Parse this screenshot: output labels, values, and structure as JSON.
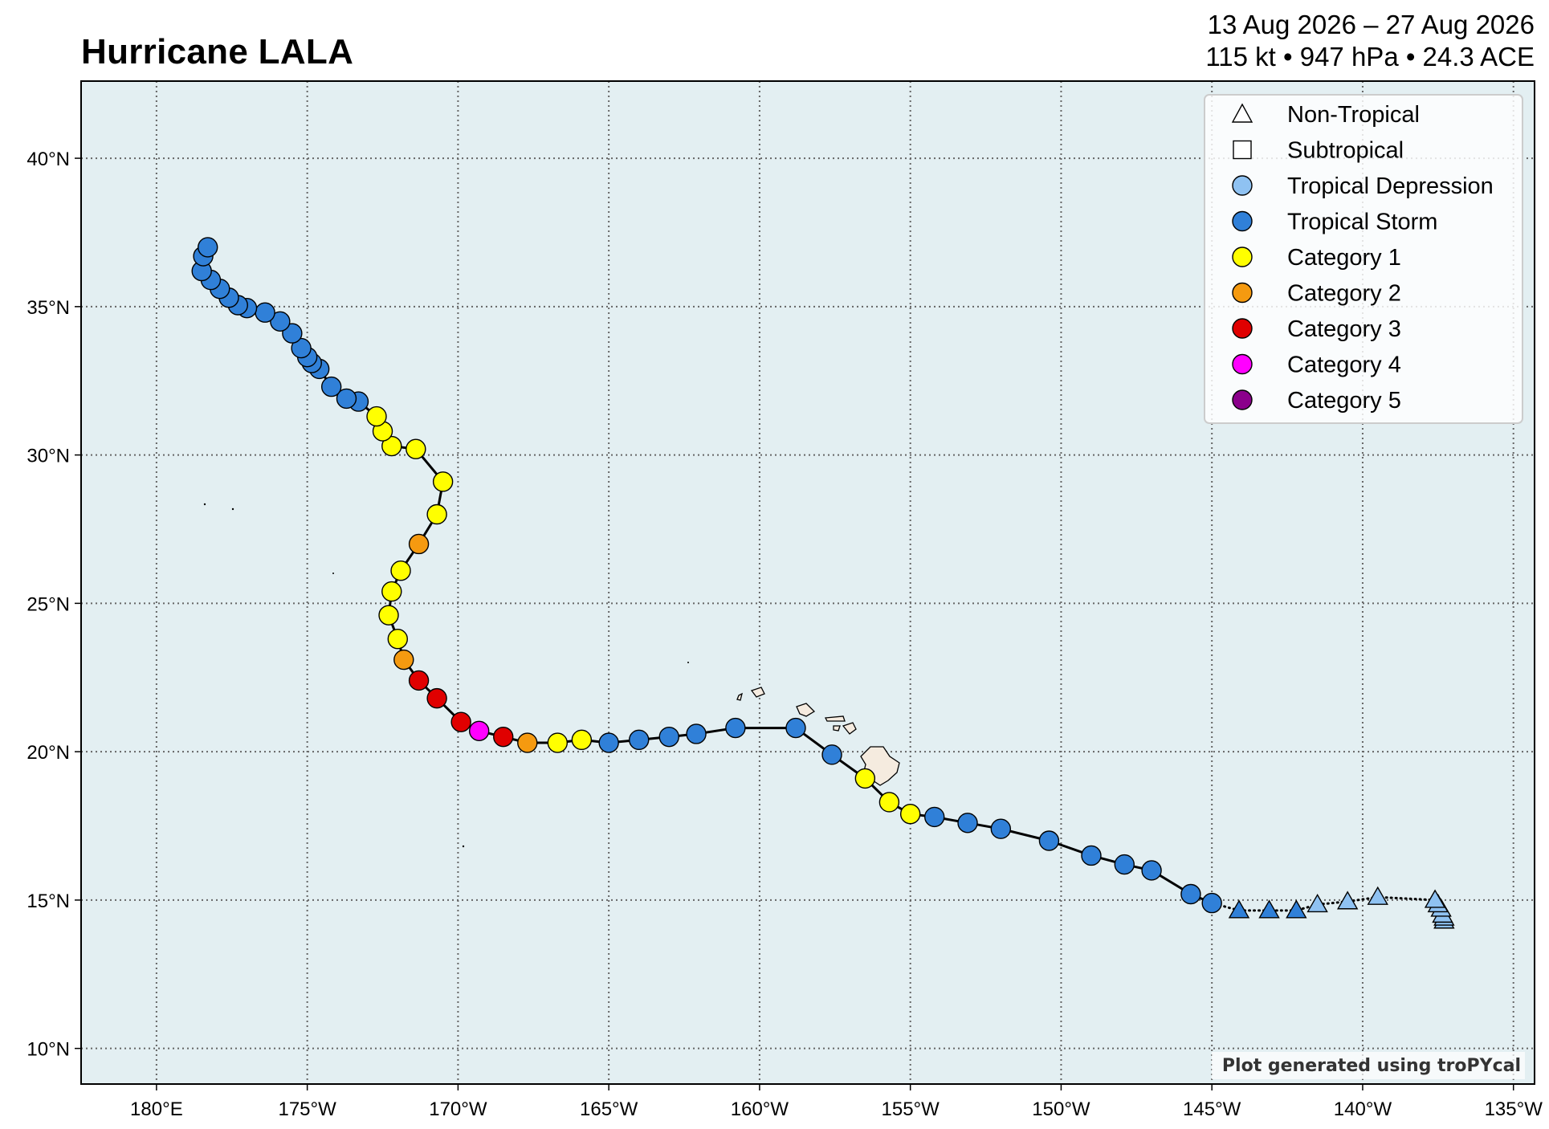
{
  "title": "Hurricane LALA",
  "date_range": "13 Aug 2026 – 27 Aug 2026",
  "stats": "115 kt • 947 hPa • 24.3 ACE",
  "credit": "Plot generated using troPYcal",
  "colors": {
    "ocean": "#e3eff2",
    "land": "#f5ebdf",
    "track": "#000000",
    "grid": "#666666",
    "Tropical Depression": "#8fc2f2",
    "Tropical Storm": "#3080d8",
    "Category 1": "#ffff00",
    "Category 2": "#f59a10",
    "Category 3": "#e00000",
    "Category 4": "#ff00ff",
    "Category 5": "#8b008b"
  },
  "legend": [
    {
      "label": "Non-Tropical",
      "marker": "triangle",
      "fill": "#ffffff"
    },
    {
      "label": "Subtropical",
      "marker": "square",
      "fill": "#ffffff"
    },
    {
      "label": "Tropical Depression",
      "marker": "circle",
      "fill": "#8fc2f2"
    },
    {
      "label": "Tropical Storm",
      "marker": "circle",
      "fill": "#3080d8"
    },
    {
      "label": "Category 1",
      "marker": "circle",
      "fill": "#ffff00"
    },
    {
      "label": "Category 2",
      "marker": "circle",
      "fill": "#f59a10"
    },
    {
      "label": "Category 3",
      "marker": "circle",
      "fill": "#e00000"
    },
    {
      "label": "Category 4",
      "marker": "circle",
      "fill": "#ff00ff"
    },
    {
      "label": "Category 5",
      "marker": "circle",
      "fill": "#8b008b"
    }
  ],
  "chart_data": {
    "type": "scatter",
    "map_extent": {
      "lon": [
        -182.5,
        -134.3
      ],
      "lat": [
        8.8,
        42.6
      ]
    },
    "x_ticks": [
      {
        "lon": -180,
        "label": "180°E"
      },
      {
        "lon": -175,
        "label": "175°W"
      },
      {
        "lon": -170,
        "label": "170°W"
      },
      {
        "lon": -165,
        "label": "165°W"
      },
      {
        "lon": -160,
        "label": "160°W"
      },
      {
        "lon": -155,
        "label": "155°W"
      },
      {
        "lon": -150,
        "label": "150°W"
      },
      {
        "lon": -145,
        "label": "145°W"
      },
      {
        "lon": -140,
        "label": "140°W"
      },
      {
        "lon": -135,
        "label": "135°W"
      }
    ],
    "y_ticks": [
      {
        "lat": 10,
        "label": "10°N"
      },
      {
        "lat": 15,
        "label": "15°N"
      },
      {
        "lat": 20,
        "label": "20°N"
      },
      {
        "lat": 25,
        "label": "25°N"
      },
      {
        "lat": 30,
        "label": "30°N"
      },
      {
        "lat": 35,
        "label": "35°N"
      },
      {
        "lat": 40,
        "label": "40°N"
      }
    ],
    "grid": true,
    "legend_position": "top-right",
    "track": [
      {
        "lon": -137.3,
        "lat": 14.3,
        "type": "NT",
        "cat": "TD"
      },
      {
        "lon": -137.3,
        "lat": 14.4,
        "type": "NT",
        "cat": "TD"
      },
      {
        "lon": -137.35,
        "lat": 14.5,
        "type": "NT",
        "cat": "TD"
      },
      {
        "lon": -137.4,
        "lat": 14.7,
        "type": "NT",
        "cat": "TD"
      },
      {
        "lon": -137.5,
        "lat": 14.85,
        "type": "NT",
        "cat": "TD"
      },
      {
        "lon": -137.6,
        "lat": 15.0,
        "type": "NT",
        "cat": "TD"
      },
      {
        "lon": -139.5,
        "lat": 15.1,
        "type": "NT",
        "cat": "TD"
      },
      {
        "lon": -140.5,
        "lat": 14.95,
        "type": "NT",
        "cat": "TD"
      },
      {
        "lon": -141.5,
        "lat": 14.85,
        "type": "NT",
        "cat": "TD"
      },
      {
        "lon": -142.2,
        "lat": 14.65,
        "type": "NT",
        "cat": "TS"
      },
      {
        "lon": -143.1,
        "lat": 14.65,
        "type": "NT",
        "cat": "TS"
      },
      {
        "lon": -144.1,
        "lat": 14.65,
        "type": "NT",
        "cat": "TS"
      },
      {
        "lon": -145.0,
        "lat": 14.9,
        "type": "T",
        "cat": "TS"
      },
      {
        "lon": -145.7,
        "lat": 15.2,
        "type": "T",
        "cat": "TS"
      },
      {
        "lon": -147.0,
        "lat": 16.0,
        "type": "T",
        "cat": "TS"
      },
      {
        "lon": -147.9,
        "lat": 16.2,
        "type": "T",
        "cat": "TS"
      },
      {
        "lon": -149.0,
        "lat": 16.5,
        "type": "T",
        "cat": "TS"
      },
      {
        "lon": -150.4,
        "lat": 17.0,
        "type": "T",
        "cat": "TS"
      },
      {
        "lon": -152.0,
        "lat": 17.4,
        "type": "T",
        "cat": "TS"
      },
      {
        "lon": -153.1,
        "lat": 17.6,
        "type": "T",
        "cat": "TS"
      },
      {
        "lon": -154.2,
        "lat": 17.8,
        "type": "T",
        "cat": "TS"
      },
      {
        "lon": -155.0,
        "lat": 17.9,
        "type": "T",
        "cat": "C1"
      },
      {
        "lon": -155.7,
        "lat": 18.3,
        "type": "T",
        "cat": "C1"
      },
      {
        "lon": -156.5,
        "lat": 19.1,
        "type": "T",
        "cat": "C1"
      },
      {
        "lon": -157.6,
        "lat": 19.9,
        "type": "T",
        "cat": "TS"
      },
      {
        "lon": -158.8,
        "lat": 20.8,
        "type": "T",
        "cat": "TS"
      },
      {
        "lon": -160.8,
        "lat": 20.8,
        "type": "T",
        "cat": "TS"
      },
      {
        "lon": -162.1,
        "lat": 20.6,
        "type": "T",
        "cat": "TS"
      },
      {
        "lon": -163.0,
        "lat": 20.5,
        "type": "T",
        "cat": "TS"
      },
      {
        "lon": -164.0,
        "lat": 20.4,
        "type": "T",
        "cat": "TS"
      },
      {
        "lon": -165.0,
        "lat": 20.3,
        "type": "T",
        "cat": "TS"
      },
      {
        "lon": -165.9,
        "lat": 20.4,
        "type": "T",
        "cat": "C1"
      },
      {
        "lon": -166.7,
        "lat": 20.3,
        "type": "T",
        "cat": "C1"
      },
      {
        "lon": -167.7,
        "lat": 20.3,
        "type": "T",
        "cat": "C2"
      },
      {
        "lon": -168.5,
        "lat": 20.5,
        "type": "T",
        "cat": "C3"
      },
      {
        "lon": -169.3,
        "lat": 20.7,
        "type": "T",
        "cat": "C4"
      },
      {
        "lon": -169.9,
        "lat": 21.0,
        "type": "T",
        "cat": "C3"
      },
      {
        "lon": -170.7,
        "lat": 21.8,
        "type": "T",
        "cat": "C3"
      },
      {
        "lon": -171.3,
        "lat": 22.4,
        "type": "T",
        "cat": "C3"
      },
      {
        "lon": -171.8,
        "lat": 23.1,
        "type": "T",
        "cat": "C2"
      },
      {
        "lon": -172.0,
        "lat": 23.8,
        "type": "T",
        "cat": "C1"
      },
      {
        "lon": -172.3,
        "lat": 24.6,
        "type": "T",
        "cat": "C1"
      },
      {
        "lon": -172.2,
        "lat": 25.4,
        "type": "T",
        "cat": "C1"
      },
      {
        "lon": -171.9,
        "lat": 26.1,
        "type": "T",
        "cat": "C1"
      },
      {
        "lon": -171.3,
        "lat": 27.0,
        "type": "T",
        "cat": "C2"
      },
      {
        "lon": -170.7,
        "lat": 28.0,
        "type": "T",
        "cat": "C1"
      },
      {
        "lon": -170.5,
        "lat": 29.1,
        "type": "T",
        "cat": "C1"
      },
      {
        "lon": -171.4,
        "lat": 30.2,
        "type": "T",
        "cat": "C1"
      },
      {
        "lon": -172.2,
        "lat": 30.3,
        "type": "T",
        "cat": "C1"
      },
      {
        "lon": -172.5,
        "lat": 30.8,
        "type": "T",
        "cat": "C1"
      },
      {
        "lon": -172.7,
        "lat": 31.3,
        "type": "T",
        "cat": "C1"
      },
      {
        "lon": -173.3,
        "lat": 31.8,
        "type": "T",
        "cat": "TS"
      },
      {
        "lon": -173.7,
        "lat": 31.9,
        "type": "T",
        "cat": "TS"
      },
      {
        "lon": -174.2,
        "lat": 32.3,
        "type": "T",
        "cat": "TS"
      },
      {
        "lon": -174.6,
        "lat": 32.9,
        "type": "T",
        "cat": "TS"
      },
      {
        "lon": -174.85,
        "lat": 33.1,
        "type": "T",
        "cat": "TS"
      },
      {
        "lon": -175.0,
        "lat": 33.3,
        "type": "T",
        "cat": "TS"
      },
      {
        "lon": -175.2,
        "lat": 33.6,
        "type": "T",
        "cat": "TS"
      },
      {
        "lon": -175.5,
        "lat": 34.1,
        "type": "T",
        "cat": "TS"
      },
      {
        "lon": -175.9,
        "lat": 34.5,
        "type": "T",
        "cat": "TS"
      },
      {
        "lon": -176.4,
        "lat": 34.8,
        "type": "T",
        "cat": "TS"
      },
      {
        "lon": -177.0,
        "lat": 34.95,
        "type": "T",
        "cat": "TS"
      },
      {
        "lon": -177.3,
        "lat": 35.05,
        "type": "T",
        "cat": "TS"
      },
      {
        "lon": -177.6,
        "lat": 35.3,
        "type": "T",
        "cat": "TS"
      },
      {
        "lon": -177.9,
        "lat": 35.6,
        "type": "T",
        "cat": "TS"
      },
      {
        "lon": -178.2,
        "lat": 35.9,
        "type": "T",
        "cat": "TS"
      },
      {
        "lon": -178.5,
        "lat": 36.2,
        "type": "T",
        "cat": "TS"
      },
      {
        "lon": -178.45,
        "lat": 36.7,
        "type": "T",
        "cat": "TS"
      },
      {
        "lon": -178.3,
        "lat": 37.0,
        "type": "T",
        "cat": "TS"
      }
    ]
  }
}
